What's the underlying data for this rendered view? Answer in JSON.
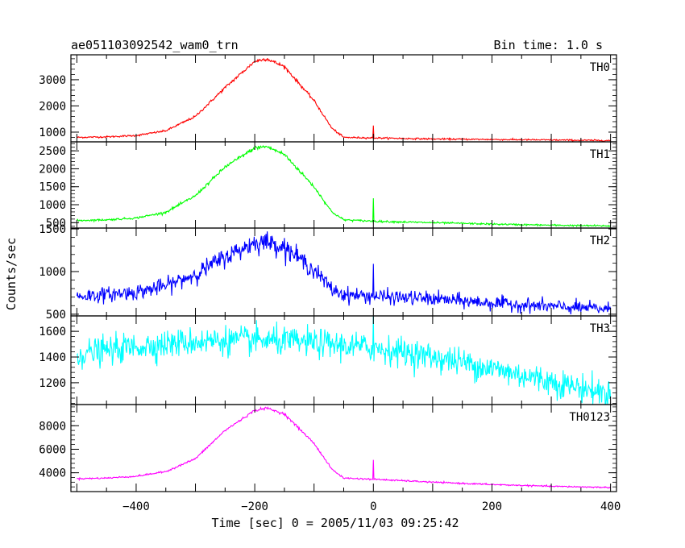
{
  "header": {
    "title": "ae051103092542_wam0_trn",
    "bin_time": "Bin time: 1.0 s"
  },
  "chart_data": {
    "type": "line",
    "xlabel": "Time [sec] 0 = 2005/11/03 09:25:42",
    "ylabel": "Counts/sec",
    "xlim": [
      -510,
      410
    ],
    "x_ticks": [
      -400,
      -200,
      0,
      200,
      400
    ],
    "x_tick_labels": [
      "−400",
      "−200",
      "0",
      "200",
      "400"
    ],
    "colors": {
      "TH0": "#ff0000",
      "TH1": "#00ff00",
      "TH2": "#0000ff",
      "TH3": "#00ffff",
      "TH0123": "#ff00ff"
    },
    "panels": [
      {
        "name": "TH0",
        "ylim": [
          630,
          3950
        ],
        "y_ticks": [
          1000,
          2000,
          3000
        ],
        "y_tick_labels": [
          "1000",
          "2000",
          "3000"
        ],
        "x": [
          -500,
          -450,
          -400,
          -350,
          -300,
          -250,
          -200,
          -180,
          -150,
          -100,
          -70,
          -50,
          0,
          100,
          200,
          300,
          400
        ],
        "y": [
          800,
          820,
          870,
          1050,
          1600,
          2700,
          3700,
          3800,
          3500,
          2200,
          1150,
          800,
          780,
          740,
          720,
          700,
          680
        ]
      },
      {
        "name": "TH1",
        "ylim": [
          350,
          2750
        ],
        "y_ticks": [
          500,
          1000,
          1500,
          2000,
          2500
        ],
        "y_tick_labels": [
          "500",
          "1000",
          "1500",
          "2000",
          "2500"
        ],
        "x": [
          -500,
          -450,
          -400,
          -350,
          -300,
          -250,
          -200,
          -180,
          -150,
          -100,
          -70,
          -50,
          0,
          100,
          200,
          300,
          400
        ],
        "y": [
          560,
          580,
          630,
          790,
          1250,
          2050,
          2580,
          2620,
          2400,
          1500,
          800,
          580,
          540,
          500,
          460,
          430,
          410
        ]
      },
      {
        "name": "TH2",
        "ylim": [
          480,
          1510
        ],
        "y_ticks": [
          500,
          1000,
          1500
        ],
        "y_tick_labels": [
          "500",
          "1000",
          "1500"
        ],
        "x": [
          -500,
          -450,
          -400,
          -350,
          -300,
          -250,
          -200,
          -180,
          -150,
          -100,
          -70,
          -50,
          0,
          100,
          200,
          300,
          400
        ],
        "y": [
          710,
          730,
          760,
          830,
          970,
          1170,
          1340,
          1350,
          1290,
          1020,
          790,
          730,
          710,
          680,
          630,
          590,
          560
        ]
      },
      {
        "name": "TH3",
        "ylim": [
          1030,
          1720
        ],
        "y_ticks": [
          1200,
          1400,
          1600
        ],
        "y_tick_labels": [
          "1200",
          "1400",
          "1600"
        ],
        "x": [
          -500,
          -450,
          -400,
          -350,
          -300,
          -250,
          -200,
          -150,
          -100,
          -50,
          0,
          50,
          100,
          150,
          200,
          250,
          300,
          350,
          400
        ],
        "y": [
          1420,
          1450,
          1480,
          1500,
          1520,
          1530,
          1530,
          1520,
          1510,
          1490,
          1470,
          1440,
          1400,
          1360,
          1310,
          1260,
          1210,
          1160,
          1110
        ]
      },
      {
        "name": "TH0123",
        "ylim": [
          2400,
          9800
        ],
        "y_ticks": [
          4000,
          6000,
          8000
        ],
        "y_tick_labels": [
          "4000",
          "6000",
          "8000"
        ],
        "x": [
          -500,
          -450,
          -400,
          -350,
          -300,
          -250,
          -200,
          -180,
          -150,
          -100,
          -70,
          -50,
          0,
          100,
          200,
          300,
          400
        ],
        "y": [
          3500,
          3550,
          3700,
          4100,
          5200,
          7600,
          9300,
          9500,
          9000,
          6500,
          4300,
          3550,
          3450,
          3200,
          3000,
          2850,
          2750
        ]
      }
    ],
    "spike": {
      "x": 0,
      "heights": [
        1250,
        1180,
        1090,
        1720,
        5100
      ]
    }
  }
}
